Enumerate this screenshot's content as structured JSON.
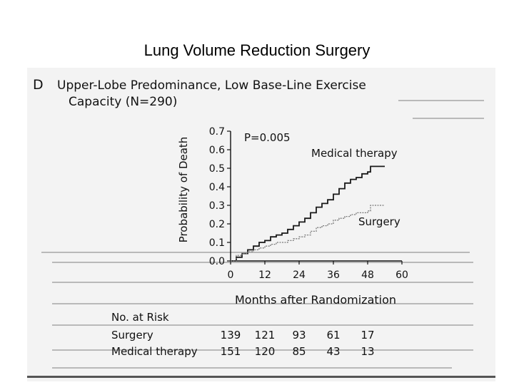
{
  "slide": {
    "title": "Lung Volume Reduction Surgery"
  },
  "panel": {
    "letter": "D",
    "heading_line1": "Upper-Lobe Predominance, Low Base-Line Exercise",
    "heading_line2": "Capacity (N=290)"
  },
  "colors": {
    "background": "#ffffff",
    "scan_background": "#f3f3f3",
    "medical_line": "#1a1a1a",
    "surgery_line": "#7a7a7a"
  },
  "chart_data": {
    "type": "line",
    "xlabel": "Months after Randomization",
    "ylabel": "Probability of Death",
    "xlim": [
      0,
      60
    ],
    "ylim": [
      0,
      0.7
    ],
    "xticks": [
      "0",
      "12",
      "24",
      "36",
      "48",
      "60"
    ],
    "yticks": [
      "0.0",
      "0.1",
      "0.2",
      "0.3",
      "0.4",
      "0.5",
      "0.6",
      "0.7"
    ],
    "annotation": "P=0.005",
    "series": [
      {
        "name": "Medical therapy",
        "color": "#1a1a1a",
        "x": [
          0,
          2,
          4,
          6,
          8,
          10,
          12,
          14,
          16,
          18,
          20,
          22,
          24,
          26,
          28,
          30,
          32,
          34,
          36,
          38,
          40,
          42,
          44,
          46,
          48,
          49,
          50,
          52,
          54
        ],
        "y": [
          0,
          0.02,
          0.04,
          0.06,
          0.08,
          0.1,
          0.11,
          0.13,
          0.14,
          0.15,
          0.17,
          0.19,
          0.21,
          0.23,
          0.26,
          0.29,
          0.31,
          0.33,
          0.36,
          0.39,
          0.42,
          0.44,
          0.45,
          0.47,
          0.48,
          0.51,
          0.51,
          0.51,
          0.51
        ]
      },
      {
        "name": "Surgery",
        "color": "#7a7a7a",
        "x": [
          0,
          2,
          4,
          6,
          8,
          10,
          12,
          14,
          16,
          18,
          20,
          22,
          24,
          26,
          28,
          30,
          32,
          34,
          36,
          38,
          40,
          42,
          44,
          46,
          48,
          49,
          50,
          52,
          54
        ],
        "y": [
          0,
          0.03,
          0.04,
          0.05,
          0.06,
          0.07,
          0.08,
          0.09,
          0.1,
          0.1,
          0.11,
          0.12,
          0.13,
          0.14,
          0.16,
          0.18,
          0.19,
          0.2,
          0.22,
          0.23,
          0.24,
          0.25,
          0.26,
          0.26,
          0.27,
          0.3,
          0.3,
          0.3,
          0.3
        ]
      }
    ],
    "risk_table": {
      "title": "No. at Risk",
      "rows": [
        {
          "label": "Surgery",
          "values": [
            "139",
            "121",
            "93",
            "61",
            "17"
          ]
        },
        {
          "label": "Medical therapy",
          "values": [
            "151",
            "120",
            "85",
            "43",
            "13"
          ]
        }
      ]
    }
  }
}
